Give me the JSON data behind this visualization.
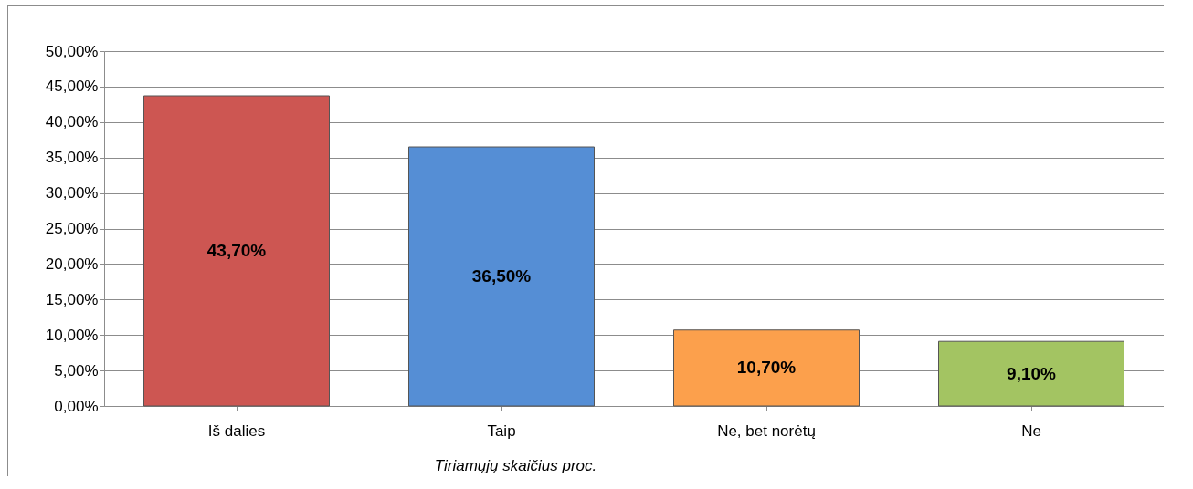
{
  "chart_data": {
    "type": "bar",
    "categories": [
      "Iš dalies",
      "Taip",
      "Ne, bet norėtų",
      "Ne"
    ],
    "values": [
      43.7,
      36.5,
      10.7,
      9.1
    ],
    "colors": [
      "#cd5652",
      "#558ed5",
      "#fca04c",
      "#a3c462"
    ],
    "value_labels": [
      "43,70%",
      "36,50%",
      "10,70%",
      "9,10%"
    ],
    "xlabel": "Tiriamųjų skaičius proc.",
    "ylim": [
      0,
      50
    ],
    "yticks": [
      {
        "value": 0,
        "label": "0,00%"
      },
      {
        "value": 5,
        "label": "5,00%"
      },
      {
        "value": 10,
        "label": "10,00%"
      },
      {
        "value": 15,
        "label": "15,00%"
      },
      {
        "value": 20,
        "label": "20,00%"
      },
      {
        "value": 25,
        "label": "25,00%"
      },
      {
        "value": 30,
        "label": "30,00%"
      },
      {
        "value": 35,
        "label": "35,00%"
      },
      {
        "value": 40,
        "label": "40,00%"
      },
      {
        "value": 45,
        "label": "45,00%"
      },
      {
        "value": 50,
        "label": "50,00%"
      }
    ],
    "grid": "y",
    "legend": false
  }
}
